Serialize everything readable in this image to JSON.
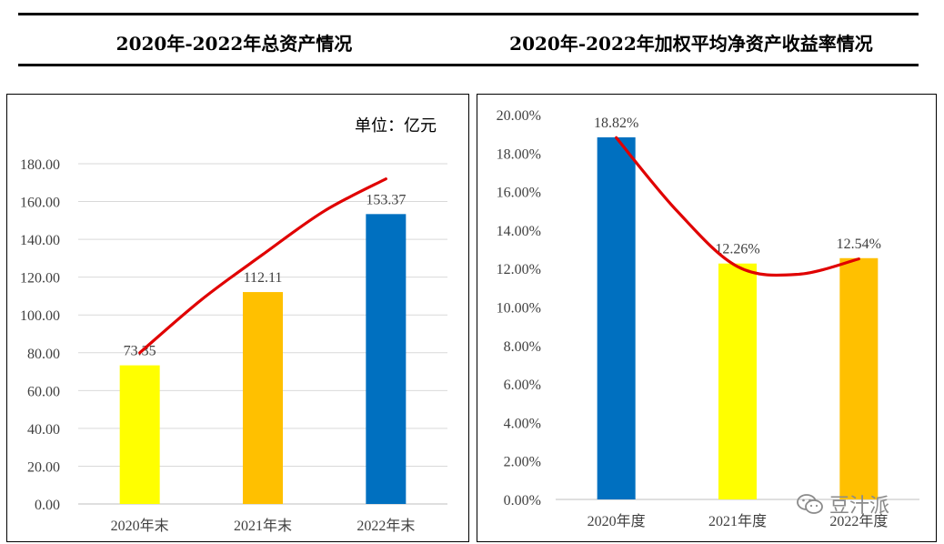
{
  "header": {
    "left_title": "2020年-2022年总资产情况",
    "right_title": "2020年-2022年加权平均净资产收益率情况"
  },
  "watermark": {
    "text": "豆汁派",
    "icon": "wechat-icon"
  },
  "chart_data": [
    {
      "type": "bar",
      "title": "2020年-2022年总资产情况",
      "unit_label": "单位：亿元",
      "categories": [
        "2020年末",
        "2021年末",
        "2022年末"
      ],
      "values": [
        73.35,
        112.11,
        153.37
      ],
      "value_labels": [
        "73.35",
        "112.11",
        "153.37"
      ],
      "bar_colors": [
        "#FFFF00",
        "#FFC000",
        "#0070C0"
      ],
      "ylim": [
        0,
        180
      ],
      "yticks": [
        "0.00",
        "20.00",
        "40.00",
        "60.00",
        "80.00",
        "100.00",
        "120.00",
        "140.00",
        "160.00",
        "180.00"
      ],
      "grid": true,
      "trend_line": {
        "color": "#E00000",
        "points": [
          [
            0,
            80
          ],
          [
            0.5,
            108
          ],
          [
            1,
            132
          ],
          [
            1.5,
            155
          ],
          [
            2,
            172
          ]
        ]
      }
    },
    {
      "type": "bar",
      "title": "2020年-2022年加权平均净资产收益率情况",
      "categories": [
        "2020年度",
        "2021年度",
        "2022年度"
      ],
      "values": [
        18.82,
        12.26,
        12.54
      ],
      "value_labels": [
        "18.82%",
        "12.26%",
        "12.54%"
      ],
      "bar_colors": [
        "#0070C0",
        "#FFFF00",
        "#FFC000"
      ],
      "ylim": [
        0,
        20
      ],
      "yticks": [
        "0.00%",
        "2.00%",
        "4.00%",
        "6.00%",
        "8.00%",
        "10.00%",
        "12.00%",
        "14.00%",
        "16.00%",
        "18.00%",
        "20.00%"
      ],
      "grid": false,
      "trend_line": {
        "color": "#E00000",
        "points": [
          [
            0,
            18.8
          ],
          [
            0.5,
            15.0
          ],
          [
            1,
            12.1
          ],
          [
            1.5,
            11.7
          ],
          [
            2,
            12.5
          ]
        ]
      }
    }
  ]
}
